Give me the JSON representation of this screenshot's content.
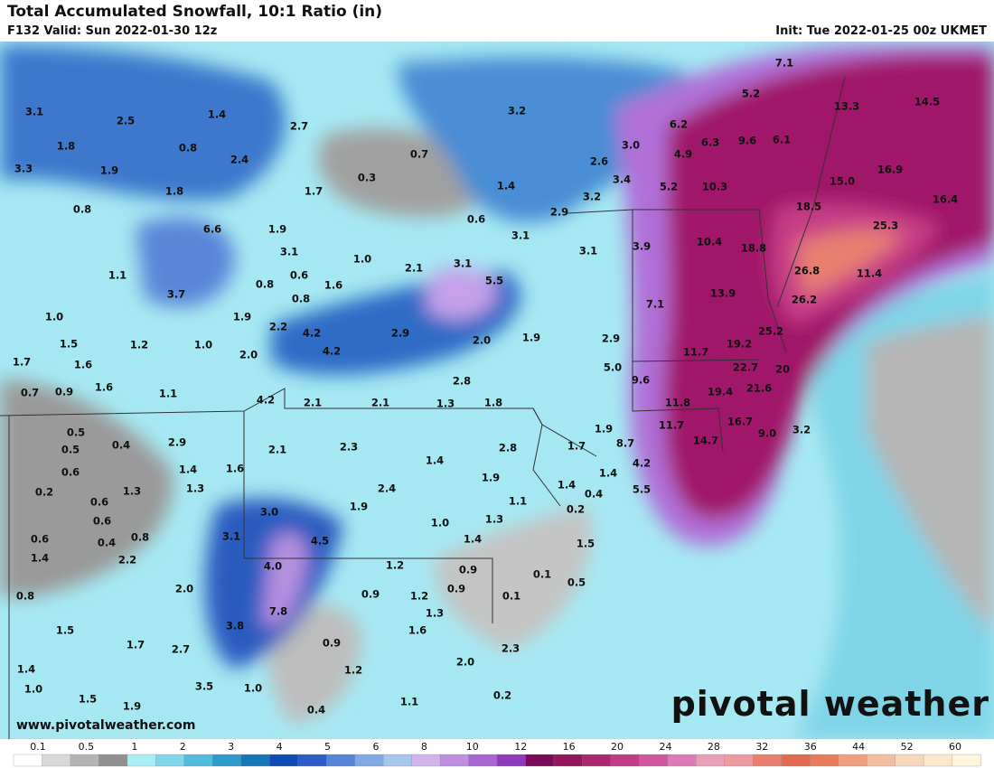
{
  "header": {
    "title": "Total Accumulated Snowfall, 10:1 Ratio (in)",
    "valid": "F132 Valid: Sun 2022-01-30 12z",
    "init": "Init: Tue 2022-01-25 00z UKMET"
  },
  "map": {
    "labels": [
      "7.1",
      "5.2",
      "13.3",
      "14.5",
      "3.1",
      "2.5",
      "1.4",
      "3.2",
      "6.2",
      "2.7",
      "6.3",
      "9.6",
      "6.1",
      "3.0",
      "4.9",
      "1.8",
      "0.8",
      "0.7",
      "2.6",
      "3.3",
      "1.9",
      "2.4",
      "16.9",
      "15.0",
      "0.3",
      "1.4",
      "3.4",
      "5.2",
      "10.3",
      "1.8",
      "1.7",
      "3.2",
      "0.8",
      "18.5",
      "16.4",
      "0.6",
      "2.9",
      "6.6",
      "1.9",
      "3.1",
      "3.9",
      "10.4",
      "18.8",
      "25.3",
      "3.1",
      "1.0",
      "3.1",
      "3.1",
      "2.1",
      "5.5",
      "1.1",
      "0.6",
      "0.8",
      "1.6",
      "26.8",
      "11.4",
      "3.7",
      "0.8",
      "13.9",
      "26.2",
      "7.1",
      "1.0",
      "1.9",
      "2.2",
      "4.2",
      "2.9",
      "2.0",
      "1.9",
      "2.9",
      "25.2",
      "1.5",
      "1.2",
      "1.0",
      "4.2",
      "19.2",
      "11.7",
      "1.7",
      "1.6",
      "2.0",
      "2.8",
      "5.0",
      "9.6",
      "22.7",
      "20",
      "0.7",
      "0.9",
      "1.6",
      "1.1",
      "4.2",
      "2.1",
      "2.1",
      "1.3",
      "1.8",
      "19.4",
      "21.6",
      "11.8",
      "1.9",
      "11.7",
      "16.7",
      "0.5",
      "0.4",
      "2.9",
      "1.7",
      "8.7",
      "14.7",
      "9.0",
      "3.2",
      "0.5",
      "2.1",
      "2.3",
      "2.8",
      "1.4",
      "0.6",
      "1.4",
      "1.6",
      "1.4",
      "4.2",
      "1.9",
      "0.2",
      "1.3",
      "1.3",
      "2.4",
      "1.4",
      "0.4",
      "5.5",
      "1.1",
      "0.6",
      "1.9",
      "0.2",
      "3.0",
      "0.6",
      "1.0",
      "1.3",
      "0.6",
      "0.4",
      "0.8",
      "3.1",
      "4.5",
      "1.4",
      "1.5",
      "1.4",
      "2.2",
      "4.0",
      "1.2",
      "0.9",
      "0.1",
      "0.9",
      "0.5",
      "0.8",
      "2.0",
      "0.9",
      "1.2",
      "0.1",
      "7.8",
      "1.3",
      "1.5",
      "3.8",
      "1.6",
      "1.7",
      "2.7",
      "0.9",
      "2.3",
      "1.4",
      "1.2",
      "2.0",
      "1.0",
      "3.5",
      "1.0",
      "1.5",
      "1.1",
      "1.9",
      "0.4",
      "0.2"
    ]
  },
  "legend": {
    "labels": [
      "0.1",
      "0.5",
      "1",
      "2",
      "3",
      "4",
      "5",
      "6",
      "8",
      "10",
      "12",
      "16",
      "20",
      "24",
      "28",
      "32",
      "36",
      "44",
      "52",
      "60"
    ],
    "colors": [
      "#ffffff",
      "#d8d8d8",
      "#b4b4b4",
      "#909090",
      "#a8eef6",
      "#7ed8ea",
      "#52bcdc",
      "#2d9ccc",
      "#1478b8",
      "#0c4cb4",
      "#2e5cc8",
      "#5684d8",
      "#7ea8e6",
      "#a6c6ee",
      "#d2b4ec",
      "#c08ee0",
      "#aa66d2",
      "#8e3aba",
      "#7a0a5a",
      "#96165e",
      "#ac2670",
      "#c23c88",
      "#d056a0",
      "#de7ab8",
      "#e8a0b8",
      "#ec9ca0",
      "#e88070",
      "#e26a50",
      "#e87c5c",
      "#f0a080",
      "#f4bea0",
      "#f8d8bc",
      "#fbe8cc",
      "#fff4dc"
    ]
  },
  "footer": {
    "url": "www.pivotalweather.com",
    "brand": "pivotal weather"
  }
}
